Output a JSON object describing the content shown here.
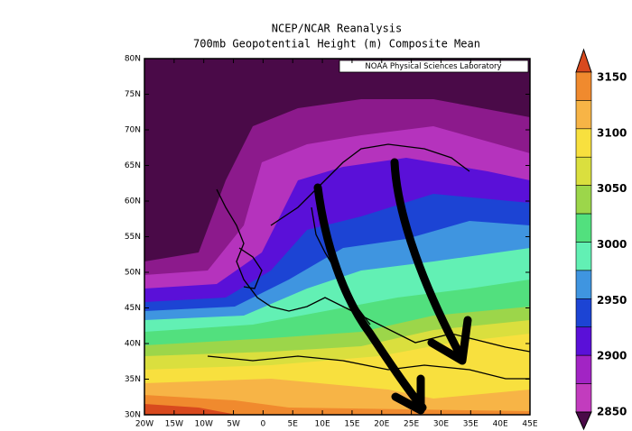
{
  "header": {
    "title": "NCEP/NCAR Reanalysis",
    "subtitle": "700mb Geopotential Height (m) Composite Mean"
  },
  "map": {
    "credit": "NOAA Physical Sciences Laboratory",
    "lat_labels": [
      "80N",
      "75N",
      "70N",
      "65N",
      "60N",
      "55N",
      "50N",
      "45N",
      "40N",
      "35N",
      "30N"
    ],
    "lon_labels": [
      "20W",
      "15W",
      "10W",
      "5W",
      "0",
      "5E",
      "10E",
      "15E",
      "20E",
      "25E",
      "30E",
      "35E",
      "40E",
      "45E"
    ]
  },
  "colorbar": {
    "labels": [
      3150,
      3100,
      3050,
      3000,
      2950,
      2900,
      2850
    ],
    "colors": [
      "#d8491e",
      "#f08a2e",
      "#f7b446",
      "#f8e03e",
      "#dadf3e",
      "#9cd64a",
      "#52e07e",
      "#62f0b4",
      "#3f95e0",
      "#1c44d4",
      "#5a10d8",
      "#a224c4",
      "#c23cbe",
      "#4a0a48"
    ]
  }
}
